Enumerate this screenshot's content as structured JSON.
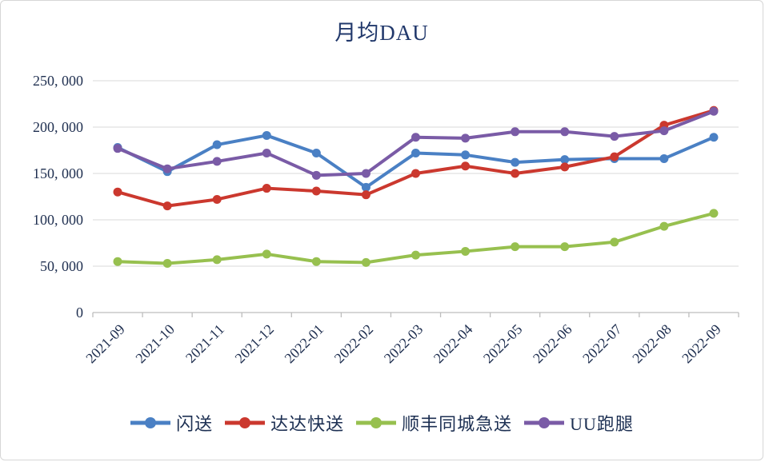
{
  "chart_data": {
    "type": "line",
    "title": "月均DAU",
    "x": [
      "2021-09",
      "2021-10",
      "2021-11",
      "2021-12",
      "2022-01",
      "2022-02",
      "2022-03",
      "2022-04",
      "2022-05",
      "2022-06",
      "2022-07",
      "2022-08",
      "2022-09"
    ],
    "series": [
      {
        "key": "shansong",
        "name": "闪送",
        "color": "#4a80c4",
        "values": [
          178000,
          152000,
          181000,
          191000,
          172000,
          135000,
          172000,
          170000,
          162000,
          165000,
          166000,
          166000,
          189000
        ]
      },
      {
        "key": "dada-kuaisong",
        "name": "达达快送",
        "color": "#cb382e",
        "values": [
          130000,
          115000,
          122000,
          134000,
          131000,
          127000,
          150000,
          158000,
          150000,
          157000,
          168000,
          202000,
          218000
        ]
      },
      {
        "key": "sf-intracity",
        "name": "顺丰同城急送",
        "color": "#97c04f",
        "values": [
          55000,
          53000,
          57000,
          63000,
          55000,
          54000,
          62000,
          66000,
          71000,
          71000,
          76000,
          93000,
          107000
        ]
      },
      {
        "key": "uu-paotui",
        "name": "UU跑腿",
        "color": "#7a5ba6",
        "values": [
          177000,
          155000,
          163000,
          172000,
          148000,
          150000,
          189000,
          188000,
          195000,
          195000,
          190000,
          196000,
          217000
        ]
      }
    ],
    "xlabel": "",
    "ylabel": "",
    "ylim": [
      0,
      250000
    ],
    "ytick_values": [
      0,
      50000,
      100000,
      150000,
      200000,
      250000
    ],
    "ytick_labels": [
      "0",
      "50, 000",
      "100, 000",
      "150, 000",
      "200, 000",
      "250, 000"
    ],
    "grid": true,
    "legend_position": "bottom",
    "colors": {
      "grid": "#d9d9d9",
      "axis": "#bdbdbd",
      "text": "#1f2f50",
      "title": "#21386b"
    }
  }
}
